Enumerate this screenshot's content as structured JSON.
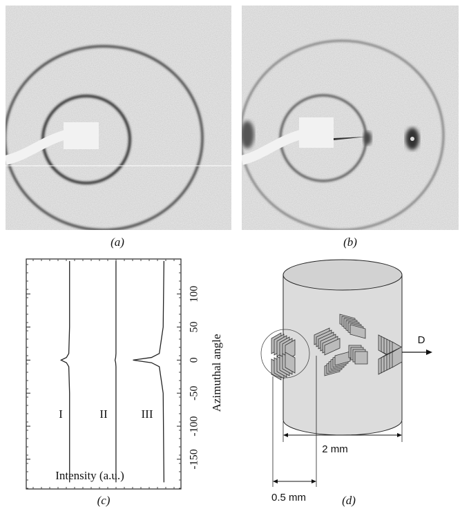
{
  "panel_labels": [
    "(a)",
    "(b)",
    "(c)",
    "(d)"
  ],
  "chart_data": {
    "type": "line",
    "orientation": "vertical",
    "x_label": "Azimuthal angle",
    "y_label": "Intensity (a.u.)",
    "x": [
      150,
      50,
      10,
      4,
      0,
      -4,
      -10,
      -50,
      -185
    ],
    "xlim": [
      -195,
      153
    ],
    "xticks": [
      100,
      50,
      0,
      -50,
      -100,
      -150
    ],
    "ylim": [
      0,
      10
    ],
    "series": [
      {
        "name": "I",
        "color": "#222222",
        "values": [
          2.8,
          2.8,
          2.75,
          2.6,
          2.25,
          2.6,
          2.75,
          2.8,
          2.8
        ]
      },
      {
        "name": "II",
        "color": "#222222",
        "values": [
          5.8,
          5.8,
          5.8,
          5.78,
          5.74,
          5.78,
          5.8,
          5.8,
          5.8
        ]
      },
      {
        "name": "III",
        "color": "#222222",
        "values": [
          8.9,
          8.85,
          8.6,
          8.1,
          6.9,
          8.1,
          8.6,
          8.85,
          8.9
        ]
      }
    ]
  },
  "diagram": {
    "direction_label": "D",
    "width_label": "2 mm",
    "offset_label": "0.5 mm"
  }
}
